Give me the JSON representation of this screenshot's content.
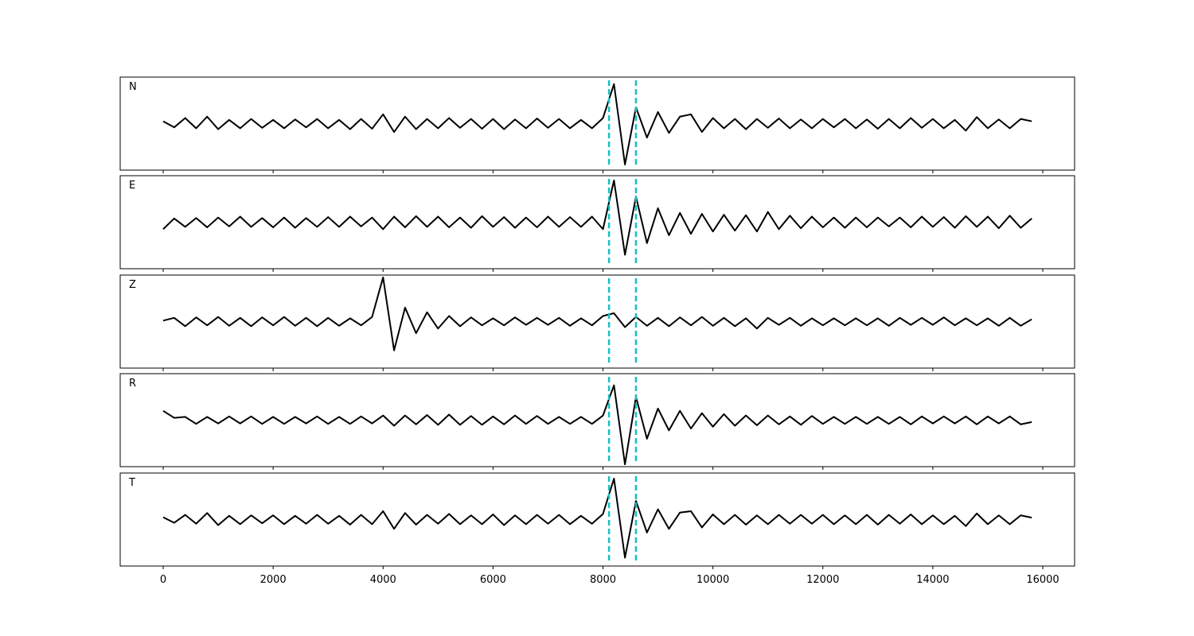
{
  "chart_data": [
    {
      "type": "line",
      "label": "N",
      "color": "#000000",
      "vline_color": "#17bfbf",
      "vlines": [
        8110,
        8600
      ],
      "xlim": [
        -782,
        16579
      ],
      "ylim": [
        -1,
        1
      ],
      "x": [
        0,
        200,
        400,
        600,
        800,
        1000,
        1200,
        1400,
        1600,
        1800,
        2000,
        2200,
        2400,
        2600,
        2800,
        3000,
        3200,
        3400,
        3600,
        3800,
        4000,
        4200,
        4400,
        4600,
        4800,
        5000,
        5200,
        5400,
        5600,
        5800,
        6000,
        6200,
        6400,
        6600,
        6800,
        7000,
        7200,
        7400,
        7600,
        7800,
        8000,
        8200,
        8400,
        8600,
        8800,
        9000,
        9200,
        9400,
        9600,
        9800,
        10000,
        10200,
        10400,
        10600,
        10800,
        11000,
        11200,
        11400,
        11600,
        11800,
        12000,
        12200,
        12400,
        12600,
        12800,
        13000,
        13200,
        13400,
        13600,
        13800,
        14000,
        14200,
        14400,
        14600,
        14800,
        15000,
        15200,
        15400,
        15600,
        15800
      ],
      "values": [
        0.05,
        -0.08,
        0.12,
        -0.1,
        0.15,
        -0.12,
        0.08,
        -0.1,
        0.1,
        -0.09,
        0.08,
        -0.1,
        0.09,
        -0.08,
        0.1,
        -0.1,
        0.08,
        -0.12,
        0.1,
        -0.11,
        0.2,
        -0.18,
        0.15,
        -0.12,
        0.1,
        -0.1,
        0.12,
        -0.09,
        0.1,
        -0.11,
        0.1,
        -0.12,
        0.09,
        -0.1,
        0.11,
        -0.09,
        0.1,
        -0.1,
        0.08,
        -0.1,
        0.12,
        0.85,
        -0.88,
        0.35,
        -0.3,
        0.25,
        -0.2,
        0.15,
        0.2,
        -0.18,
        0.12,
        -0.1,
        0.1,
        -0.12,
        0.1,
        -0.09,
        0.11,
        -0.1,
        0.09,
        -0.1,
        0.1,
        -0.08,
        0.1,
        -0.1,
        0.09,
        -0.11,
        0.1,
        -0.1,
        0.12,
        -0.09,
        0.1,
        -0.1,
        0.08,
        -0.15,
        0.14,
        -0.1,
        0.09,
        -0.1,
        0.1,
        0.05
      ]
    },
    {
      "type": "line",
      "label": "E",
      "color": "#000000",
      "vline_color": "#17bfbf",
      "vlines": [
        8110,
        8600
      ],
      "xlim": [
        -782,
        16579
      ],
      "ylim": [
        -1,
        1
      ],
      "x": [
        0,
        200,
        400,
        600,
        800,
        1000,
        1200,
        1400,
        1600,
        1800,
        2000,
        2200,
        2400,
        2600,
        2800,
        3000,
        3200,
        3400,
        3600,
        3800,
        4000,
        4200,
        4400,
        4600,
        4800,
        5000,
        5200,
        5400,
        5600,
        5800,
        6000,
        6200,
        6400,
        6600,
        6800,
        7000,
        7200,
        7400,
        7600,
        7800,
        8000,
        8200,
        8400,
        8600,
        8800,
        9000,
        9200,
        9400,
        9600,
        9800,
        10000,
        10200,
        10400,
        10600,
        10800,
        11000,
        11200,
        11400,
        11600,
        11800,
        12000,
        12200,
        12400,
        12600,
        12800,
        13000,
        13200,
        13400,
        13600,
        13800,
        14000,
        14200,
        14400,
        14600,
        14800,
        15000,
        15200,
        15400,
        15600,
        15800
      ],
      "values": [
        -0.15,
        0.08,
        -0.1,
        0.09,
        -0.11,
        0.1,
        -0.09,
        0.12,
        -0.1,
        0.09,
        -0.11,
        0.1,
        -0.12,
        0.09,
        -0.1,
        0.11,
        -0.1,
        0.12,
        -0.09,
        0.1,
        -0.15,
        0.12,
        -0.11,
        0.13,
        -0.1,
        0.12,
        -0.11,
        0.1,
        -0.12,
        0.13,
        -0.1,
        0.11,
        -0.12,
        0.1,
        -0.11,
        0.12,
        -0.1,
        0.11,
        -0.1,
        0.12,
        -0.15,
        0.9,
        -0.7,
        0.55,
        -0.45,
        0.3,
        -0.28,
        0.2,
        -0.25,
        0.18,
        -0.2,
        0.16,
        -0.18,
        0.15,
        -0.2,
        0.22,
        -0.15,
        0.14,
        -0.13,
        0.12,
        -0.11,
        0.1,
        -0.12,
        0.1,
        -0.11,
        0.1,
        -0.09,
        0.1,
        -0.11,
        0.12,
        -0.1,
        0.11,
        -0.12,
        0.13,
        -0.1,
        0.12,
        -0.13,
        0.14,
        -0.12,
        0.08
      ]
    },
    {
      "type": "line",
      "label": "Z",
      "color": "#000000",
      "vline_color": "#17bfbf",
      "vlines": [
        8110,
        8600
      ],
      "xlim": [
        -782,
        16579
      ],
      "ylim": [
        -1,
        1
      ],
      "x": [
        0,
        200,
        400,
        600,
        800,
        1000,
        1200,
        1400,
        1600,
        1800,
        2000,
        2200,
        2400,
        2600,
        2800,
        3000,
        3200,
        3400,
        3600,
        3800,
        4000,
        4200,
        4400,
        4600,
        4800,
        5000,
        5200,
        5400,
        5600,
        5800,
        6000,
        6200,
        6400,
        6600,
        6800,
        7000,
        7200,
        7400,
        7600,
        7800,
        8000,
        8200,
        8400,
        8600,
        8800,
        9000,
        9200,
        9400,
        9600,
        9800,
        10000,
        10200,
        10400,
        10600,
        10800,
        11000,
        11200,
        11400,
        11600,
        11800,
        12000,
        12200,
        12400,
        12600,
        12800,
        13000,
        13200,
        13400,
        13600,
        13800,
        14000,
        14200,
        14400,
        14600,
        14800,
        15000,
        15200,
        15400,
        15600,
        15800
      ],
      "values": [
        0.02,
        0.08,
        -0.1,
        0.09,
        -0.08,
        0.1,
        -0.09,
        0.08,
        -0.1,
        0.09,
        -0.08,
        0.1,
        -0.09,
        0.08,
        -0.1,
        0.08,
        -0.09,
        0.07,
        -0.08,
        0.1,
        0.95,
        -0.62,
        0.3,
        -0.25,
        0.2,
        -0.15,
        0.12,
        -0.1,
        0.09,
        -0.08,
        0.07,
        -0.08,
        0.09,
        -0.07,
        0.08,
        -0.07,
        0.08,
        -0.09,
        0.07,
        -0.08,
        0.12,
        0.18,
        -0.12,
        0.1,
        -0.09,
        0.08,
        -0.1,
        0.09,
        -0.08,
        0.1,
        -0.09,
        0.08,
        -0.1,
        0.07,
        -0.15,
        0.08,
        -0.07,
        0.08,
        -0.09,
        0.07,
        -0.08,
        0.07,
        -0.08,
        0.07,
        -0.08,
        0.07,
        -0.09,
        0.08,
        -0.07,
        0.08,
        -0.07,
        0.09,
        -0.08,
        0.07,
        -0.08,
        0.07,
        -0.09,
        0.08,
        -0.09,
        0.05
      ]
    },
    {
      "type": "line",
      "label": "R",
      "color": "#000000",
      "vline_color": "#17bfbf",
      "vlines": [
        8110,
        8600
      ],
      "xlim": [
        -782,
        16579
      ],
      "ylim": [
        -1,
        1
      ],
      "x": [
        0,
        200,
        400,
        600,
        800,
        1000,
        1200,
        1400,
        1600,
        1800,
        2000,
        2200,
        2400,
        2600,
        2800,
        3000,
        3200,
        3400,
        3600,
        3800,
        4000,
        4200,
        4400,
        4600,
        4800,
        5000,
        5200,
        5400,
        5600,
        5800,
        6000,
        6200,
        6400,
        6600,
        6800,
        7000,
        7200,
        7400,
        7600,
        7800,
        8000,
        8200,
        8400,
        8600,
        8800,
        9000,
        9200,
        9400,
        9600,
        9800,
        10000,
        10200,
        10400,
        10600,
        10800,
        11000,
        11200,
        11400,
        11600,
        11800,
        12000,
        12200,
        12400,
        12600,
        12800,
        13000,
        13200,
        13400,
        13600,
        13800,
        14000,
        14200,
        14400,
        14600,
        14800,
        15000,
        15200,
        15400,
        15600,
        15800
      ],
      "values": [
        0.2,
        0.05,
        0.07,
        -0.08,
        0.07,
        -0.07,
        0.08,
        -0.07,
        0.08,
        -0.08,
        0.07,
        -0.08,
        0.07,
        -0.07,
        0.08,
        -0.08,
        0.07,
        -0.08,
        0.08,
        -0.07,
        0.1,
        -0.12,
        0.1,
        -0.09,
        0.11,
        -0.1,
        0.12,
        -0.1,
        0.09,
        -0.1,
        0.08,
        -0.09,
        0.1,
        -0.08,
        0.09,
        -0.08,
        0.07,
        -0.08,
        0.07,
        -0.08,
        0.1,
        0.75,
        -0.95,
        0.5,
        -0.4,
        0.25,
        -0.22,
        0.2,
        -0.18,
        0.15,
        -0.14,
        0.13,
        -0.12,
        0.1,
        -0.11,
        0.1,
        -0.09,
        0.08,
        -0.1,
        0.09,
        -0.08,
        0.07,
        -0.08,
        0.07,
        -0.08,
        0.07,
        -0.08,
        0.07,
        -0.09,
        0.08,
        -0.07,
        0.08,
        -0.07,
        0.08,
        -0.09,
        0.08,
        -0.07,
        0.08,
        -0.09,
        -0.04
      ]
    },
    {
      "type": "line",
      "label": "T",
      "color": "#000000",
      "vline_color": "#17bfbf",
      "vlines": [
        8110,
        8600
      ],
      "xlim": [
        -782,
        16579
      ],
      "ylim": [
        -1,
        1
      ],
      "xticks": [
        0,
        2000,
        4000,
        6000,
        8000,
        10000,
        12000,
        14000,
        16000
      ],
      "x": [
        0,
        200,
        400,
        600,
        800,
        1000,
        1200,
        1400,
        1600,
        1800,
        2000,
        2200,
        2400,
        2600,
        2800,
        3000,
        3200,
        3400,
        3600,
        3800,
        4000,
        4200,
        4400,
        4600,
        4800,
        5000,
        5200,
        5400,
        5600,
        5800,
        6000,
        6200,
        6400,
        6600,
        6800,
        7000,
        7200,
        7400,
        7600,
        7800,
        8000,
        8200,
        8400,
        8600,
        8800,
        9000,
        9200,
        9400,
        9600,
        9800,
        10000,
        10200,
        10400,
        10600,
        10800,
        11000,
        11200,
        11400,
        11600,
        11800,
        12000,
        12200,
        12400,
        12600,
        12800,
        13000,
        13200,
        13400,
        13600,
        13800,
        14000,
        14200,
        14400,
        14600,
        14800,
        15000,
        15200,
        15400,
        15600,
        15800
      ],
      "values": [
        0.05,
        -0.07,
        0.1,
        -0.09,
        0.14,
        -0.12,
        0.08,
        -0.1,
        0.09,
        -0.08,
        0.09,
        -0.1,
        0.08,
        -0.09,
        0.1,
        -0.09,
        0.08,
        -0.11,
        0.1,
        -0.1,
        0.18,
        -0.2,
        0.14,
        -0.11,
        0.1,
        -0.09,
        0.12,
        -0.1,
        0.09,
        -0.1,
        0.11,
        -0.12,
        0.09,
        -0.1,
        0.1,
        -0.09,
        0.1,
        -0.1,
        0.08,
        -0.09,
        0.12,
        0.88,
        -0.82,
        0.4,
        -0.28,
        0.22,
        -0.2,
        0.15,
        0.18,
        -0.17,
        0.11,
        -0.1,
        0.1,
        -0.11,
        0.09,
        -0.1,
        0.1,
        -0.09,
        0.1,
        -0.09,
        0.1,
        -0.1,
        0.09,
        -0.1,
        0.1,
        -0.11,
        0.1,
        -0.09,
        0.11,
        -0.1,
        0.09,
        -0.1,
        0.08,
        -0.14,
        0.13,
        -0.1,
        0.09,
        -0.1,
        0.09,
        0.04
      ]
    }
  ]
}
